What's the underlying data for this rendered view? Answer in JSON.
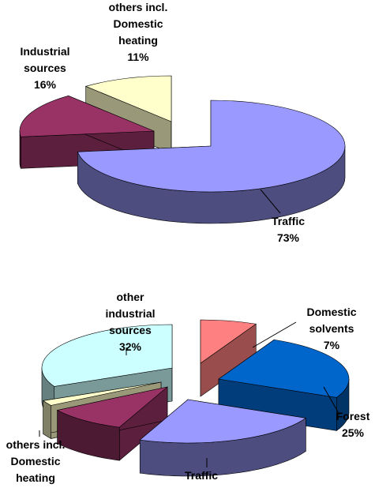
{
  "chart_data": [
    {
      "type": "pie3d",
      "categories": [
        "Traffic",
        "Industrial\nsources",
        "others incl.\nDomestic\nheating"
      ],
      "values": [
        73,
        16,
        11
      ],
      "value_labels": [
        "73%",
        "16%",
        "11%"
      ],
      "colors": [
        "#9999ff",
        "#993366",
        "#ffffcc"
      ]
    },
    {
      "type": "pie3d",
      "categories": [
        "Domestic\nsolvents",
        "Forest",
        "Traffic",
        null,
        "others incl.\nDomestic\nheating",
        "other\nindustrial\nsources"
      ],
      "values": [
        7,
        25,
        24,
        10,
        2,
        32
      ],
      "value_labels": [
        "7%",
        "25%",
        null,
        null,
        null,
        "32%"
      ],
      "colors": [
        "#ff8080",
        "#0066cc",
        "#9999ff",
        "#993366",
        "#ffffcc",
        "#ccffff"
      ]
    }
  ]
}
